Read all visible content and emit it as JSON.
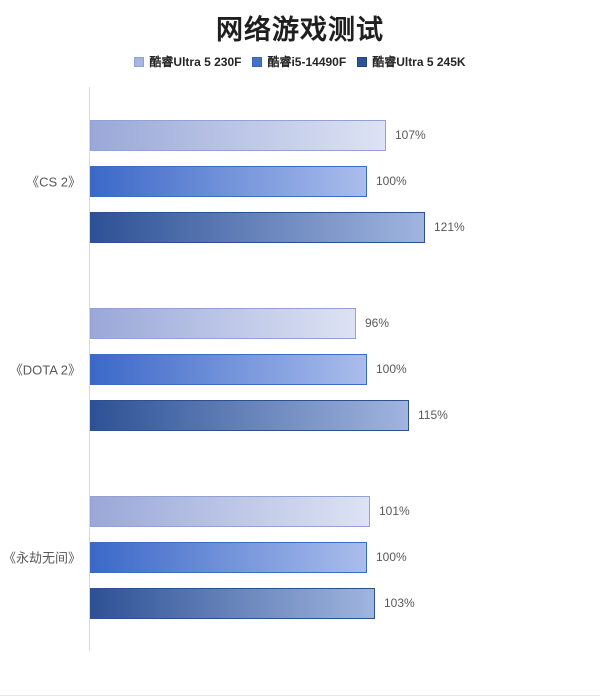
{
  "title": "网络游戏测试",
  "legend": {
    "position": "top",
    "items": [
      {
        "label": "酷睿Ultra 5 230F",
        "swatch_color": "#a9b5e1",
        "swatch_border": "#93a2d4"
      },
      {
        "label": "酷睿i5-14490F",
        "swatch_color": "#4472c4",
        "swatch_border": "#3a63b0"
      },
      {
        "label": "酷睿Ultra 5 245K",
        "swatch_color": "#2e5395",
        "swatch_border": "#264576"
      }
    ]
  },
  "chart_data": {
    "type": "bar",
    "orientation": "horizontal",
    "title": "网络游戏测试",
    "categories": [
      "《CS 2》",
      "《DOTA 2》",
      "《永劫无间》"
    ],
    "series": [
      {
        "name": "酷睿Ultra 5 230F",
        "values": [
          107,
          96,
          101
        ],
        "gradient_start": "#9aa8d8",
        "gradient_end": "#dde3f4",
        "border_color": "#93a2d4"
      },
      {
        "name": "酷睿i5-14490F",
        "values": [
          100,
          100,
          100
        ],
        "gradient_start": "#3b68c8",
        "gradient_end": "#aabdec",
        "border_color": "#3e6bc5"
      },
      {
        "name": "酷睿Ultra 5 245K",
        "values": [
          121,
          115,
          103
        ],
        "gradient_start": "#2d5195",
        "gradient_end": "#a0b5df",
        "border_color": "#2d5190"
      }
    ],
    "value_suffix": "%",
    "data_labels": true,
    "grid": false,
    "legend_position": "top",
    "axis_line_color": "#d9d9d9",
    "label_color": "#595959"
  }
}
